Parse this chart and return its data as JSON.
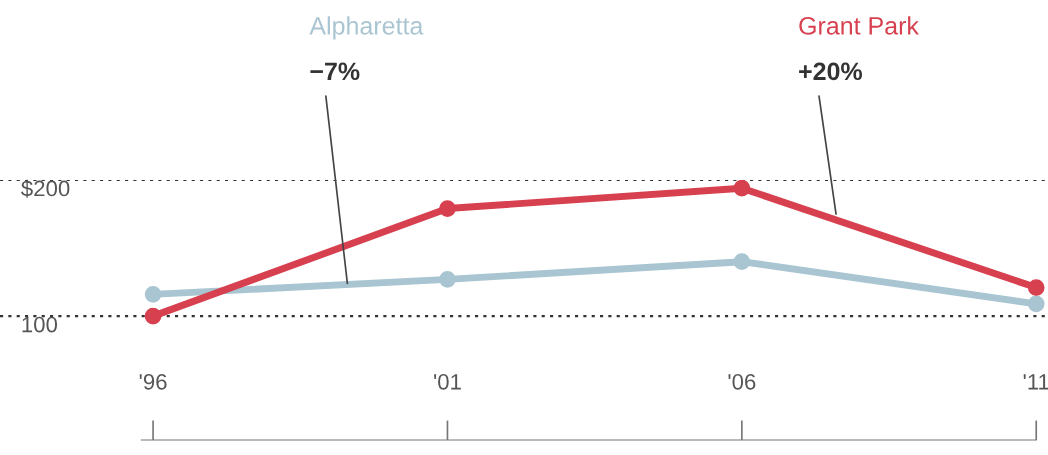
{
  "chart_data": {
    "type": "line",
    "x": [
      1996,
      2001,
      2006,
      2011
    ],
    "series": [
      {
        "name": "Alpharetta",
        "color": "#a9c5d1",
        "values": [
          116,
          127,
          140,
          109
        ]
      },
      {
        "name": "Grant Park",
        "color": "#d7404f",
        "values": [
          100,
          179,
          194,
          121
        ]
      }
    ],
    "annotations": [
      {
        "text": "−7%",
        "x": 1999.3,
        "y": 124
      },
      {
        "text": "+20%",
        "x": 2007.6,
        "y": 175
      }
    ],
    "xlim": [
      1993.4,
      2011.2
    ],
    "ylim": [
      9,
      200
    ],
    "xticks": [
      {
        "value": 1996,
        "label": "'96"
      },
      {
        "value": 2001,
        "label": "'01"
      },
      {
        "value": 2006,
        "label": "'06"
      },
      {
        "value": 2011,
        "label": "'11"
      }
    ],
    "yticks": [
      {
        "value": 100,
        "label": "100"
      },
      {
        "value": 200,
        "label": "$200"
      }
    ],
    "grid": "y",
    "marker": "circle",
    "line_style": "solid"
  }
}
